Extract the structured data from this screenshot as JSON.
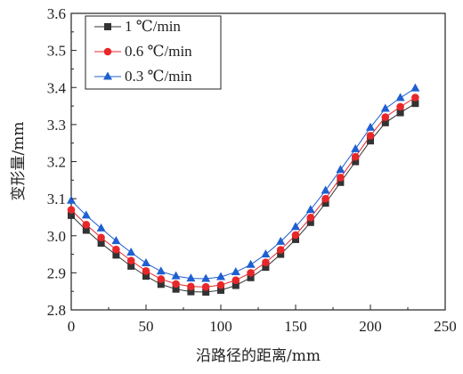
{
  "chart_data": {
    "type": "line",
    "xlabel": "沿路径的距离/mm",
    "ylabel": "变形量/mm",
    "xlim": [
      0,
      250
    ],
    "ylim": [
      2.8,
      3.6
    ],
    "x_ticks": [
      "0",
      "50",
      "100",
      "150",
      "200",
      "250"
    ],
    "y_ticks": [
      "2.8",
      "2.9",
      "3.0",
      "3.1",
      "3.2",
      "3.3",
      "3.4",
      "3.5",
      "3.6"
    ],
    "grid": false,
    "legend_position": "top-left",
    "x": [
      0,
      10,
      20,
      30,
      40,
      50,
      60,
      70,
      80,
      90,
      100,
      110,
      120,
      130,
      140,
      150,
      160,
      170,
      180,
      190,
      200,
      210,
      220,
      230
    ],
    "series": [
      {
        "name": "1 ℃/min",
        "color": "#333333",
        "marker": "square",
        "values": [
          3.055,
          3.015,
          2.98,
          2.948,
          2.918,
          2.891,
          2.869,
          2.856,
          2.849,
          2.848,
          2.853,
          2.866,
          2.887,
          2.915,
          2.95,
          2.99,
          3.036,
          3.088,
          3.144,
          3.2,
          3.256,
          3.305,
          3.332,
          3.357
        ]
      },
      {
        "name": "0.6 ℃/min",
        "color": "#e8272a",
        "marker": "circle",
        "values": [
          3.07,
          3.03,
          2.995,
          2.963,
          2.933,
          2.905,
          2.883,
          2.87,
          2.863,
          2.862,
          2.867,
          2.88,
          2.9,
          2.928,
          2.962,
          3.002,
          3.049,
          3.1,
          3.157,
          3.213,
          3.27,
          3.32,
          3.348,
          3.373
        ]
      },
      {
        "name": "0.3 ℃/min",
        "color": "#1f5fd1",
        "marker": "triangle",
        "values": [
          3.095,
          3.055,
          3.02,
          2.986,
          2.955,
          2.926,
          2.904,
          2.891,
          2.885,
          2.884,
          2.889,
          2.902,
          2.922,
          2.95,
          2.984,
          3.024,
          3.07,
          3.122,
          3.178,
          3.234,
          3.292,
          3.343,
          3.372,
          3.398
        ]
      }
    ]
  }
}
